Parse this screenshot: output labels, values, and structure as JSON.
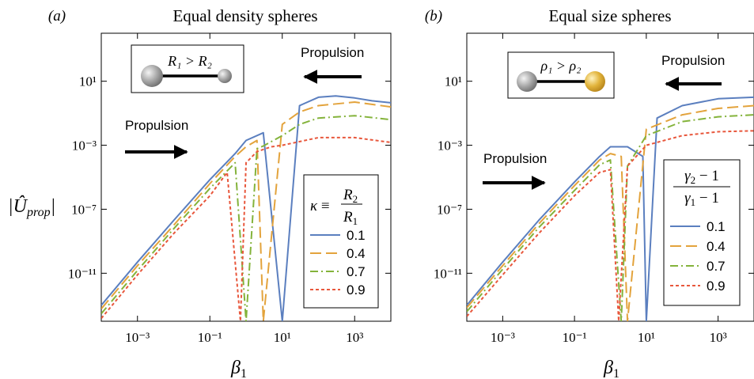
{
  "chart_data": [
    {
      "type": "line",
      "panel_label": "(a)",
      "title": "Equal density spheres",
      "xlabel": "β₁",
      "ylabel": "|Ûprop|",
      "xscale": "log",
      "yscale": "log",
      "xlim": [
        0.0001,
        10000
      ],
      "ylim": [
        1e-14,
        10000
      ],
      "xticks": [
        {
          "v": 0.001,
          "label": "10⁻³"
        },
        {
          "v": 0.1,
          "label": "10⁻¹"
        },
        {
          "v": 10,
          "label": "10¹"
        },
        {
          "v": 1000,
          "label": "10³"
        }
      ],
      "yticks": [
        {
          "v": 10,
          "label": "10¹"
        },
        {
          "v": 0.001,
          "label": "10⁻³"
        },
        {
          "v": 1e-07,
          "label": "10⁻⁷"
        },
        {
          "v": 1e-11,
          "label": "10⁻¹¹"
        }
      ],
      "inset_label": "R₁ > R₂",
      "annotations": [
        "Propulsion",
        "Propulsion"
      ],
      "legend_title": "κ ≡ R₂ / R₁",
      "legend_position": "lower-right",
      "series": [
        {
          "name": "0.1",
          "color": "#5b7fbf",
          "dash": "solid",
          "x": [
            0.0001,
            0.001,
            0.01,
            0.1,
            0.5,
            1,
            3,
            10,
            30,
            100,
            300,
            1000,
            3000,
            10000
          ],
          "y": [
            1e-13,
            5e-11,
            2e-08,
            7e-06,
            0.0003,
            0.002,
            0.006,
            1e-14,
            0.3,
            1,
            1.2,
            0.9,
            0.6,
            0.45
          ]
        },
        {
          "name": "0.4",
          "color": "#e3a33c",
          "dash": "long-dash",
          "x": [
            0.0001,
            0.001,
            0.01,
            0.1,
            0.5,
            1,
            2,
            3,
            10,
            30,
            100,
            1000,
            10000
          ],
          "y": [
            6e-14,
            3e-11,
            1e-08,
            4e-06,
            0.0002,
            0.0008,
            0.002,
            1e-14,
            0.02,
            0.12,
            0.3,
            0.5,
            0.25
          ]
        },
        {
          "name": "0.7",
          "color": "#84b33b",
          "dash": "dash-dot",
          "x": [
            0.0001,
            0.001,
            0.01,
            0.1,
            0.5,
            1,
            2,
            3,
            10,
            30,
            100,
            1000,
            10000
          ],
          "y": [
            3e-14,
            1.5e-11,
            6e-09,
            2e-06,
            8e-05,
            1e-14,
            0.0006,
            0.0009,
            0.004,
            0.02,
            0.05,
            0.07,
            0.04
          ]
        },
        {
          "name": "0.9",
          "color": "#e8573c",
          "dash": "dotted",
          "x": [
            0.0001,
            0.001,
            0.01,
            0.1,
            0.3,
            0.7,
            1,
            2,
            5,
            10,
            100,
            1000,
            10000
          ],
          "y": [
            1.5e-14,
            8e-12,
            3e-09,
            7e-07,
            2e-05,
            1e-14,
            8e-05,
            0.0004,
            0.0008,
            0.001,
            0.003,
            0.003,
            0.0015
          ]
        }
      ]
    },
    {
      "type": "line",
      "panel_label": "(b)",
      "title": "Equal size spheres",
      "xlabel": "β₁",
      "ylabel": "",
      "xscale": "log",
      "yscale": "log",
      "xlim": [
        0.0001,
        10000
      ],
      "ylim": [
        1e-14,
        10000
      ],
      "xticks": [
        {
          "v": 0.001,
          "label": "10⁻³"
        },
        {
          "v": 0.1,
          "label": "10⁻¹"
        },
        {
          "v": 10,
          "label": "10¹"
        },
        {
          "v": 1000,
          "label": "10³"
        }
      ],
      "yticks": [
        {
          "v": 10,
          "label": "10¹"
        },
        {
          "v": 0.001,
          "label": "10⁻³"
        },
        {
          "v": 1e-07,
          "label": "10⁻⁷"
        },
        {
          "v": 1e-11,
          "label": "10⁻¹¹"
        }
      ],
      "inset_label": "ρ₁ > ρ₂",
      "annotations": [
        "Propulsion",
        "Propulsion"
      ],
      "legend_title": "(γ₂ − 1) / (γ₁ − 1)",
      "legend_position": "lower-right",
      "series": [
        {
          "name": "0.1",
          "color": "#5b7fbf",
          "dash": "solid",
          "x": [
            0.0001,
            0.001,
            0.01,
            0.1,
            0.5,
            1,
            3,
            8,
            10,
            20,
            100,
            1000,
            10000
          ],
          "y": [
            1e-13,
            5e-11,
            2e-08,
            5e-06,
            0.0002,
            0.0008,
            0.0008,
            0.0002,
            1e-14,
            0.05,
            0.3,
            0.8,
            1
          ]
        },
        {
          "name": "0.4",
          "color": "#e3a33c",
          "dash": "long-dash",
          "x": [
            0.0001,
            0.001,
            0.01,
            0.1,
            0.5,
            1,
            2,
            3,
            10,
            100,
            1000,
            10000
          ],
          "y": [
            7e-14,
            3e-11,
            1.2e-08,
            3e-06,
            0.00012,
            0.0003,
            0.0002,
            1e-14,
            0.01,
            0.08,
            0.2,
            0.3
          ]
        },
        {
          "name": "0.7",
          "color": "#84b33b",
          "dash": "dash-dot",
          "x": [
            0.0001,
            0.001,
            0.01,
            0.1,
            0.5,
            1,
            2,
            3,
            10,
            100,
            1000,
            10000
          ],
          "y": [
            4e-14,
            1.8e-11,
            7e-09,
            1.5e-06,
            6e-05,
            0.00012,
            1e-14,
            5e-05,
            0.004,
            0.03,
            0.06,
            0.08
          ]
        },
        {
          "name": "0.9",
          "color": "#e8573c",
          "dash": "dotted",
          "x": [
            0.0001,
            0.001,
            0.01,
            0.1,
            0.5,
            1,
            1.7,
            3,
            10,
            100,
            1000,
            10000
          ],
          "y": [
            2e-14,
            8e-12,
            3e-09,
            7e-07,
            2e-05,
            3e-05,
            1e-14,
            5e-05,
            0.001,
            0.004,
            0.007,
            0.008
          ]
        }
      ]
    }
  ]
}
